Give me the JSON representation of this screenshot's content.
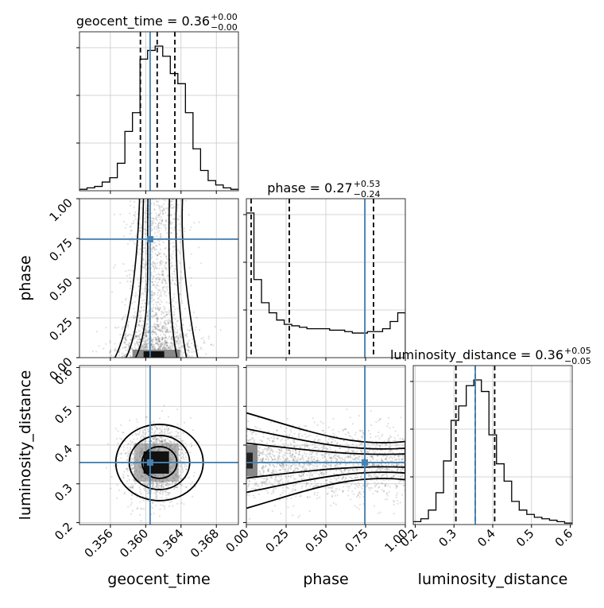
{
  "chart_data": {
    "type": "corner",
    "truth_color": "#4682b4",
    "parameters": [
      {
        "name": "geocent_time",
        "truth": 0.3605,
        "range": [
          0.3525,
          0.3705
        ],
        "ticks": [
          0.356,
          0.36,
          0.364,
          0.368
        ],
        "tick_labels": [
          "0.356",
          "0.360",
          "0.364",
          "0.368"
        ]
      },
      {
        "name": "phase",
        "truth": 0.745,
        "range": [
          0.0,
          1.0
        ],
        "ticks": [
          0.0,
          0.25,
          0.5,
          0.75,
          1.0
        ],
        "tick_labels": [
          "0.00",
          "0.25",
          "0.50",
          "0.75",
          "1.00"
        ]
      },
      {
        "name": "luminosity_distance",
        "truth": 0.355,
        "range": [
          0.195,
          0.605
        ],
        "ticks": [
          0.2,
          0.3,
          0.4,
          0.5,
          0.6
        ],
        "tick_labels": [
          "0.2",
          "0.3",
          "0.4",
          "0.5",
          "0.6"
        ]
      }
    ],
    "diagonal": [
      {
        "param": "geocent_time",
        "title": "geocent_time = 0.36",
        "sup": "+0.00",
        "sub": "−0.00",
        "quantiles": [
          0.3594,
          0.3613,
          0.3633
        ],
        "hist": [
          1,
          2,
          3,
          6,
          9,
          19,
          41,
          54,
          91,
          97,
          100,
          93,
          81,
          74,
          54,
          29,
          14,
          7,
          4,
          2,
          1
        ]
      },
      {
        "param": "phase",
        "title": "phase = 0.27",
        "sup": "+0.53",
        "sub": "−0.24",
        "quantiles": [
          0.03,
          0.27,
          0.8
        ],
        "hist": [
          100,
          54,
          38,
          31,
          26,
          23,
          22,
          21,
          20,
          20,
          20,
          19,
          19,
          18,
          17,
          17,
          18,
          18,
          20,
          25,
          31
        ]
      },
      {
        "param": "luminosity_distance",
        "title": "luminosity_distance = 0.36",
        "sup": "+0.05",
        "sub": "−0.05",
        "quantiles": [
          0.305,
          0.355,
          0.405
        ],
        "hist": [
          2,
          4,
          10,
          22,
          44,
          72,
          82,
          96,
          100,
          92,
          62,
          42,
          30,
          16,
          10,
          7,
          5,
          4,
          3,
          2,
          1
        ]
      }
    ]
  }
}
